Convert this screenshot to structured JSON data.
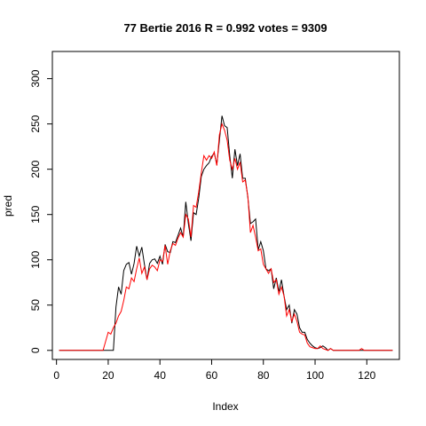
{
  "chart_data": {
    "type": "line",
    "title": "77 Bertie 2016 R = 0.992 votes = 9309",
    "xlabel": "Index",
    "ylabel": "pred",
    "xlim": [
      -1.6,
      132.6
    ],
    "ylim": [
      -10,
      330
    ],
    "xticks": [
      0,
      20,
      40,
      60,
      80,
      100,
      120
    ],
    "yticks": [
      0,
      50,
      100,
      150,
      200,
      250,
      300
    ],
    "grid": false,
    "series": [
      {
        "color": "#000000",
        "x": [
          1,
          2,
          3,
          4,
          5,
          6,
          7,
          8,
          9,
          10,
          11,
          12,
          13,
          14,
          15,
          16,
          17,
          18,
          19,
          20,
          21,
          22,
          23,
          24,
          25,
          26,
          27,
          28,
          29,
          30,
          31,
          32,
          33,
          34,
          35,
          36,
          37,
          38,
          39,
          40,
          41,
          42,
          43,
          44,
          45,
          46,
          47,
          48,
          49,
          50,
          51,
          52,
          53,
          54,
          55,
          56,
          57,
          58,
          59,
          60,
          61,
          62,
          63,
          64,
          65,
          66,
          67,
          68,
          69,
          70,
          71,
          72,
          73,
          74,
          75,
          76,
          77,
          78,
          79,
          80,
          81,
          82,
          83,
          84,
          85,
          86,
          87,
          88,
          89,
          90,
          91,
          92,
          93,
          94,
          95,
          96,
          97,
          98,
          99,
          100,
          101,
          102,
          103,
          104,
          105,
          106,
          107,
          108,
          109,
          110,
          111,
          112,
          113,
          114,
          115,
          116,
          117,
          118,
          119,
          120,
          121,
          122,
          123,
          124,
          125,
          126,
          127,
          128,
          129,
          130
        ],
        "y": [
          0,
          0,
          0,
          0,
          0,
          0,
          0,
          0,
          0,
          0,
          0,
          0,
          0,
          0,
          0,
          0,
          0,
          0,
          0,
          0,
          0,
          0,
          48,
          70,
          62,
          88,
          95,
          97,
          84,
          96,
          115,
          104,
          114,
          95,
          78,
          96,
          100,
          101,
          96,
          104,
          95,
          117,
          109,
          108,
          120,
          119,
          127,
          135,
          125,
          164,
          140,
          121,
          152,
          150,
          168,
          192,
          200,
          204,
          207,
          214,
          218,
          205,
          232,
          259,
          248,
          246,
          215,
          190,
          222,
          204,
          217,
          190,
          190,
          169,
          140,
          142,
          145,
          111,
          120,
          110,
          90,
          88,
          90,
          68,
          80,
          65,
          78,
          60,
          45,
          50,
          30,
          45,
          40,
          25,
          20,
          20,
          12,
          8,
          5,
          3,
          2,
          3,
          5,
          3,
          0,
          2,
          0,
          0,
          0,
          0,
          0,
          0,
          0,
          0,
          0,
          0,
          0,
          0,
          0,
          0,
          0,
          0,
          0,
          0,
          0,
          0,
          0,
          0,
          0,
          0
        ]
      },
      {
        "color": "#ff0000",
        "x": [
          1,
          2,
          3,
          4,
          5,
          6,
          7,
          8,
          9,
          10,
          11,
          12,
          13,
          14,
          15,
          16,
          17,
          18,
          19,
          20,
          21,
          22,
          23,
          24,
          25,
          26,
          27,
          28,
          29,
          30,
          31,
          32,
          33,
          34,
          35,
          36,
          37,
          38,
          39,
          40,
          41,
          42,
          43,
          44,
          45,
          46,
          47,
          48,
          49,
          50,
          51,
          52,
          53,
          54,
          55,
          56,
          57,
          58,
          59,
          60,
          61,
          62,
          63,
          64,
          65,
          66,
          67,
          68,
          69,
          70,
          71,
          72,
          73,
          74,
          75,
          76,
          77,
          78,
          79,
          80,
          81,
          82,
          83,
          84,
          85,
          86,
          87,
          88,
          89,
          90,
          91,
          92,
          93,
          94,
          95,
          96,
          97,
          98,
          99,
          100,
          101,
          102,
          103,
          104,
          105,
          106,
          107,
          108,
          109,
          110,
          111,
          112,
          113,
          114,
          115,
          116,
          117,
          118,
          119,
          120,
          121,
          122,
          123,
          124,
          125,
          126,
          127,
          128,
          129,
          130
        ],
        "y": [
          0,
          0,
          0,
          0,
          0,
          0,
          0,
          0,
          0,
          0,
          0,
          0,
          0,
          0,
          0,
          0,
          0,
          0,
          10,
          20,
          18,
          25,
          30,
          38,
          43,
          55,
          70,
          68,
          80,
          76,
          90,
          102,
          85,
          92,
          78,
          90,
          94,
          92,
          88,
          100,
          98,
          116,
          95,
          110,
          118,
          116,
          124,
          130,
          125,
          150,
          145,
          125,
          160,
          158,
          175,
          196,
          215,
          210,
          215,
          212,
          219,
          204,
          238,
          250,
          243,
          232,
          210,
          200,
          212,
          200,
          208,
          186,
          188,
          170,
          130,
          138,
          125,
          110,
          112,
          95,
          90,
          85,
          90,
          75,
          78,
          62,
          70,
          60,
          38,
          45,
          32,
          40,
          32,
          20,
          18,
          17,
          8,
          4,
          3,
          2,
          2,
          5,
          2,
          1,
          0,
          2,
          0,
          0,
          0,
          0,
          0,
          0,
          0,
          0,
          0,
          0,
          0,
          2,
          0,
          0,
          0,
          0,
          0,
          0,
          0,
          0,
          0,
          0,
          0,
          0
        ]
      }
    ]
  }
}
